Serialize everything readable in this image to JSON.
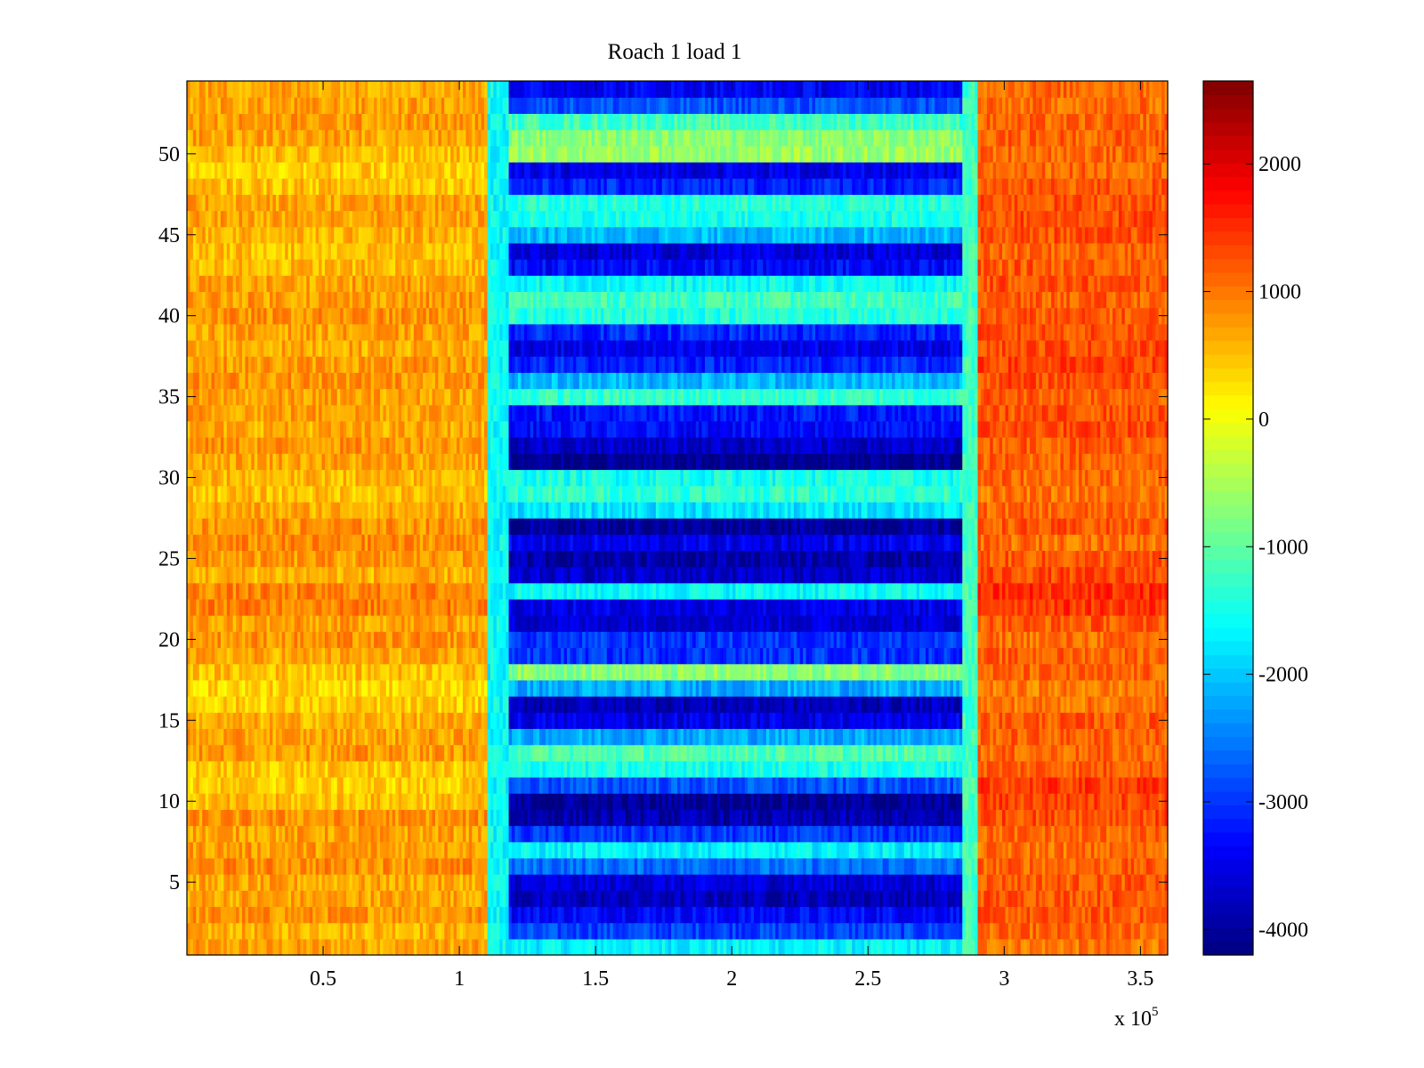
{
  "chart_data": {
    "type": "heatmap",
    "title": "Roach 1 load 1",
    "xlabel": "",
    "ylabel": "",
    "x_multiplier_label": "x 10",
    "x_multiplier_exponent": "5",
    "xlim": [
      0,
      360000
    ],
    "ylim": [
      0.5,
      54.5
    ],
    "xticks": [
      {
        "value": 50000,
        "label": "0.5"
      },
      {
        "value": 100000,
        "label": "1"
      },
      {
        "value": 150000,
        "label": "1.5"
      },
      {
        "value": 200000,
        "label": "2"
      },
      {
        "value": 250000,
        "label": "2.5"
      },
      {
        "value": 300000,
        "label": "3"
      },
      {
        "value": 350000,
        "label": "3.5"
      }
    ],
    "yticks": [
      {
        "value": 5,
        "label": "5"
      },
      {
        "value": 10,
        "label": "10"
      },
      {
        "value": 15,
        "label": "15"
      },
      {
        "value": 20,
        "label": "20"
      },
      {
        "value": 25,
        "label": "25"
      },
      {
        "value": 30,
        "label": "30"
      },
      {
        "value": 35,
        "label": "35"
      },
      {
        "value": 40,
        "label": "40"
      },
      {
        "value": 45,
        "label": "45"
      },
      {
        "value": 50,
        "label": "50"
      }
    ],
    "colorbar": {
      "colormap": "jet",
      "clim": [
        -4200,
        2650
      ],
      "ticks": [
        {
          "value": 2000,
          "label": "2000"
        },
        {
          "value": 1000,
          "label": "1000"
        },
        {
          "value": 0,
          "label": "0"
        },
        {
          "value": -1000,
          "label": "-1000"
        },
        {
          "value": -2000,
          "label": "-2000"
        },
        {
          "value": -3000,
          "label": "-3000"
        },
        {
          "value": -4000,
          "label": "-4000"
        }
      ]
    },
    "rows": 54,
    "regions": [
      {
        "x_start": 0,
        "x_end": 110000,
        "level": 700
      },
      {
        "x_start": 110000,
        "x_end": 118000,
        "level": -1600
      },
      {
        "x_start": 118000,
        "x_end": 285000,
        "level": -2500
      },
      {
        "x_start": 285000,
        "x_end": 290000,
        "level": -1200
      },
      {
        "x_start": 290000,
        "x_end": 360000,
        "level": 1100
      }
    ],
    "row_levels_center": [
      -1700,
      -2900,
      -3300,
      -3800,
      -3600,
      -2600,
      -1700,
      -3000,
      -3900,
      -4050,
      -2800,
      -1500,
      -1100,
      -2200,
      -3500,
      -3800,
      -2200,
      -700,
      -3000,
      -3000,
      -3600,
      -3500,
      -1600,
      -3700,
      -3900,
      -3500,
      -4000,
      -1800,
      -1300,
      -1500,
      -4100,
      -3700,
      -3300,
      -3200,
      -1300,
      -2100,
      -3100,
      -3500,
      -3100,
      -1400,
      -1200,
      -1600,
      -3300,
      -3600,
      -2100,
      -1500,
      -1400,
      -3100,
      -3500,
      -600,
      -700,
      -1200,
      -2800,
      -3400
    ],
    "row_offsets_outer": [
      0,
      -100,
      100,
      0,
      -50,
      150,
      50,
      0,
      100,
      -200,
      -300,
      -250,
      50,
      0,
      -100,
      -300,
      -350,
      -200,
      -50,
      100,
      0,
      250,
      200,
      -100,
      50,
      150,
      100,
      -50,
      -200,
      -150,
      0,
      100,
      -50,
      50,
      0,
      100,
      50,
      -50,
      0,
      100,
      50,
      0,
      -150,
      -200,
      -100,
      0,
      0,
      -200,
      -300,
      -200,
      0,
      50,
      0,
      0
    ],
    "row_offsets_right": [
      -100,
      0,
      100,
      150,
      100,
      50,
      -50,
      0,
      200,
      250,
      300,
      100,
      0,
      50,
      100,
      -100,
      -150,
      0,
      50,
      -50,
      100,
      350,
      400,
      200,
      100,
      -50,
      100,
      0,
      -100,
      0,
      50,
      100,
      200,
      150,
      100,
      200,
      250,
      200,
      150,
      100,
      50,
      150,
      100,
      0,
      150,
      200,
      150,
      100,
      0,
      0,
      50,
      0,
      -50,
      0
    ],
    "noise_amplitude": 320
  }
}
